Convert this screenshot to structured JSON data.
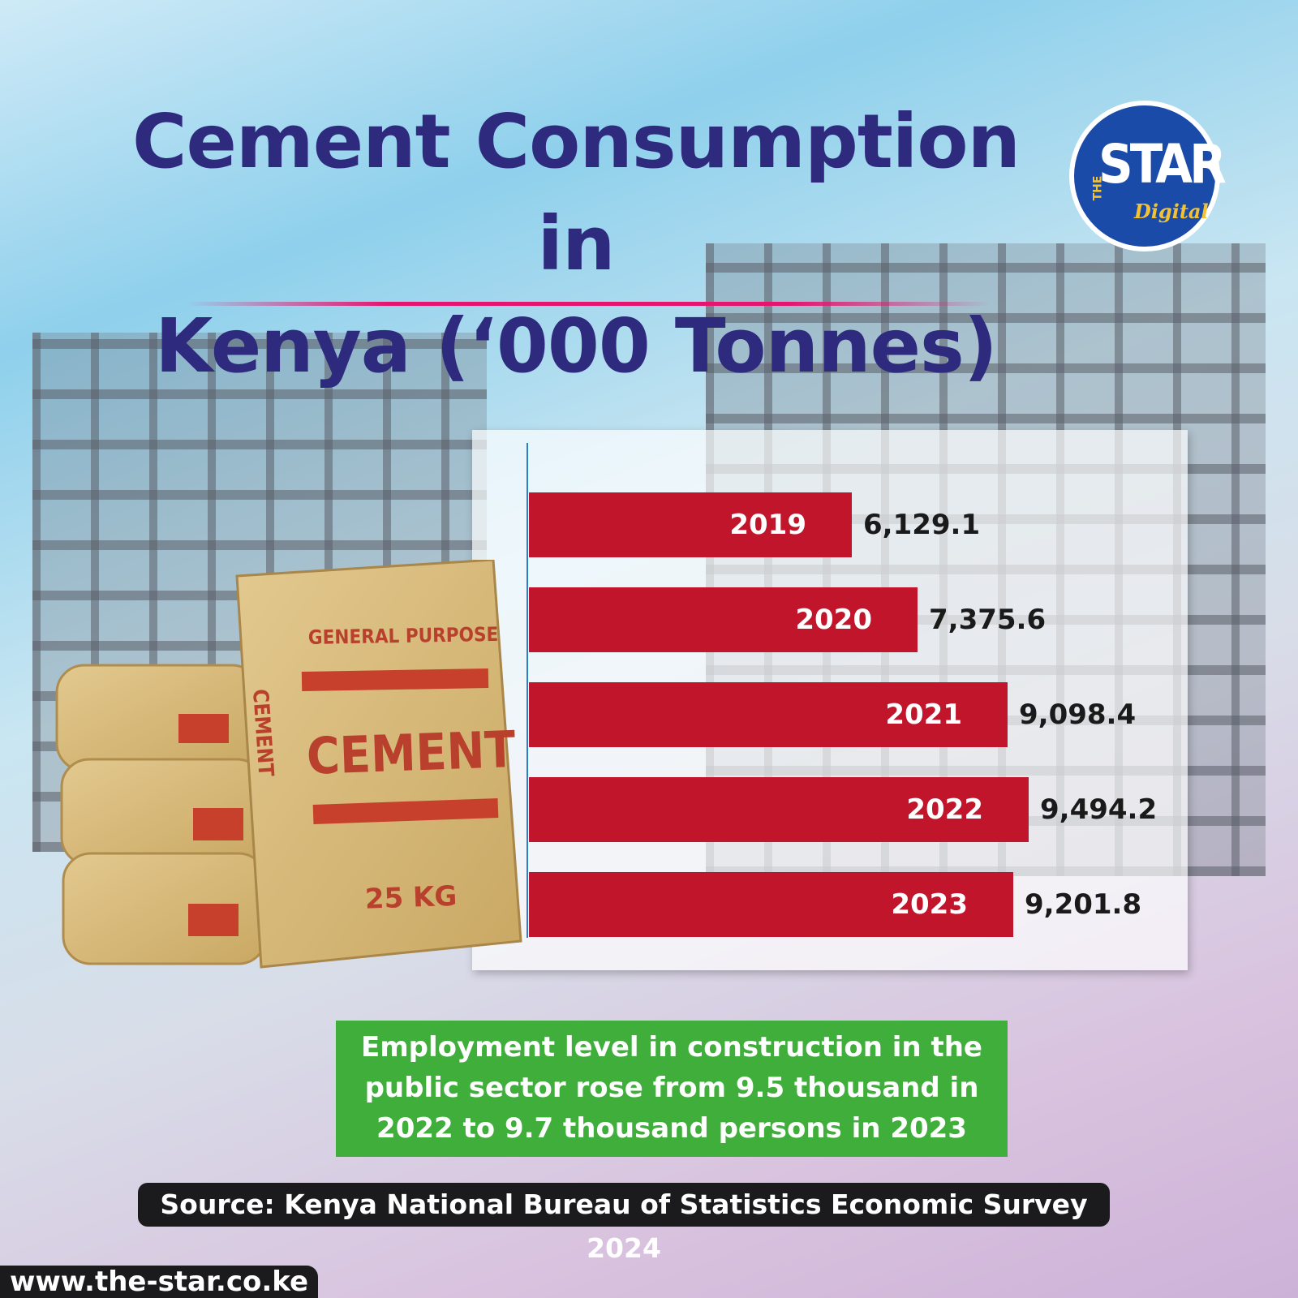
{
  "title": "Cement Consumption in Kenya (‘000 Tonnes)",
  "title_lines": [
    "Cement Consumption in",
    "Kenya (‘000 Tonnes)"
  ],
  "logo": {
    "the": "THE",
    "star": "STAR",
    "digital": "Digital"
  },
  "colors": {
    "title": "#2e2a7e",
    "bar": "#c0152a",
    "note_bg": "#3fae3a",
    "accent_rule": "#e5156f",
    "logo_bg": "#1a4ba8"
  },
  "chart_data": {
    "type": "bar",
    "orientation": "horizontal",
    "title": "Cement Consumption in Kenya (‘000 Tonnes)",
    "categories": [
      "2019",
      "2020",
      "2021",
      "2022",
      "2023"
    ],
    "values": [
      6129.1,
      7375.6,
      9098.4,
      9494.2,
      9201.8
    ],
    "value_labels": [
      "6,129.1",
      "7,375.6",
      "9,098.4",
      "9,494.2",
      "9,201.8"
    ],
    "xlim": [
      0,
      9494.2
    ],
    "grid": false,
    "legend": "none"
  },
  "bag_text": {
    "top": "GENERAL PURPOSE",
    "main": "CEMENT",
    "side": "CEMENT",
    "weight": "25 KG"
  },
  "note": "Employment level in construction in the public sector rose from 9.5 thousand in 2022 to 9.7 thousand persons in 2023",
  "source": "Source: Kenya National Bureau of Statistics Economic Survey 2024",
  "url": "www.the-star.co.ke"
}
